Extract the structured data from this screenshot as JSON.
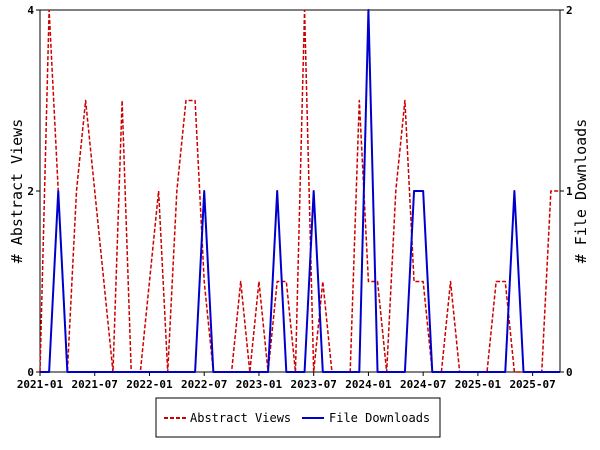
{
  "chart_data": {
    "type": "line",
    "x_start": "2021-01",
    "x_labels": [
      "2021-01",
      "2021-07",
      "2022-01",
      "2022-07",
      "2023-01",
      "2023-07",
      "2024-01",
      "2024-07",
      "2025-01",
      "2025-07"
    ],
    "left_axis": {
      "label": "# Abstract Views",
      "ylim": [
        0,
        4
      ],
      "ticks": [
        "0",
        "2",
        "4"
      ]
    },
    "right_axis": {
      "label": "# File Downloads",
      "ylim": [
        0,
        2
      ],
      "ticks": [
        "0",
        "1",
        "2"
      ]
    },
    "grid": false,
    "legend_position": "bottom",
    "series": [
      {
        "name": "Abstract Views",
        "axis": "left",
        "color": "#cc0000",
        "dash": true,
        "values": [
          0,
          4,
          2,
          0,
          2,
          3,
          2,
          1,
          0,
          3,
          0,
          0,
          1,
          2,
          0,
          2,
          3,
          3,
          1,
          0,
          0,
          0,
          1,
          0,
          1,
          0,
          1,
          1,
          0,
          4,
          0,
          1,
          0,
          0,
          0,
          3,
          1,
          1,
          0,
          2,
          3,
          1,
          1,
          0,
          0,
          1,
          0,
          0,
          0,
          0,
          1,
          1,
          0,
          0,
          0,
          0,
          2,
          2
        ]
      },
      {
        "name": "File Downloads",
        "axis": "right",
        "color": "#0000cc",
        "dash": false,
        "values": [
          0,
          0,
          1,
          0,
          0,
          0,
          0,
          0,
          0,
          0,
          0,
          0,
          0,
          0,
          0,
          0,
          0,
          0,
          1,
          0,
          0,
          0,
          0,
          0,
          0,
          0,
          1,
          0,
          0,
          0,
          1,
          0,
          0,
          0,
          0,
          0,
          2,
          0,
          0,
          0,
          0,
          1,
          1,
          0,
          0,
          0,
          0,
          0,
          0,
          0,
          0,
          0,
          1,
          0,
          0,
          0,
          0,
          0
        ]
      }
    ]
  }
}
